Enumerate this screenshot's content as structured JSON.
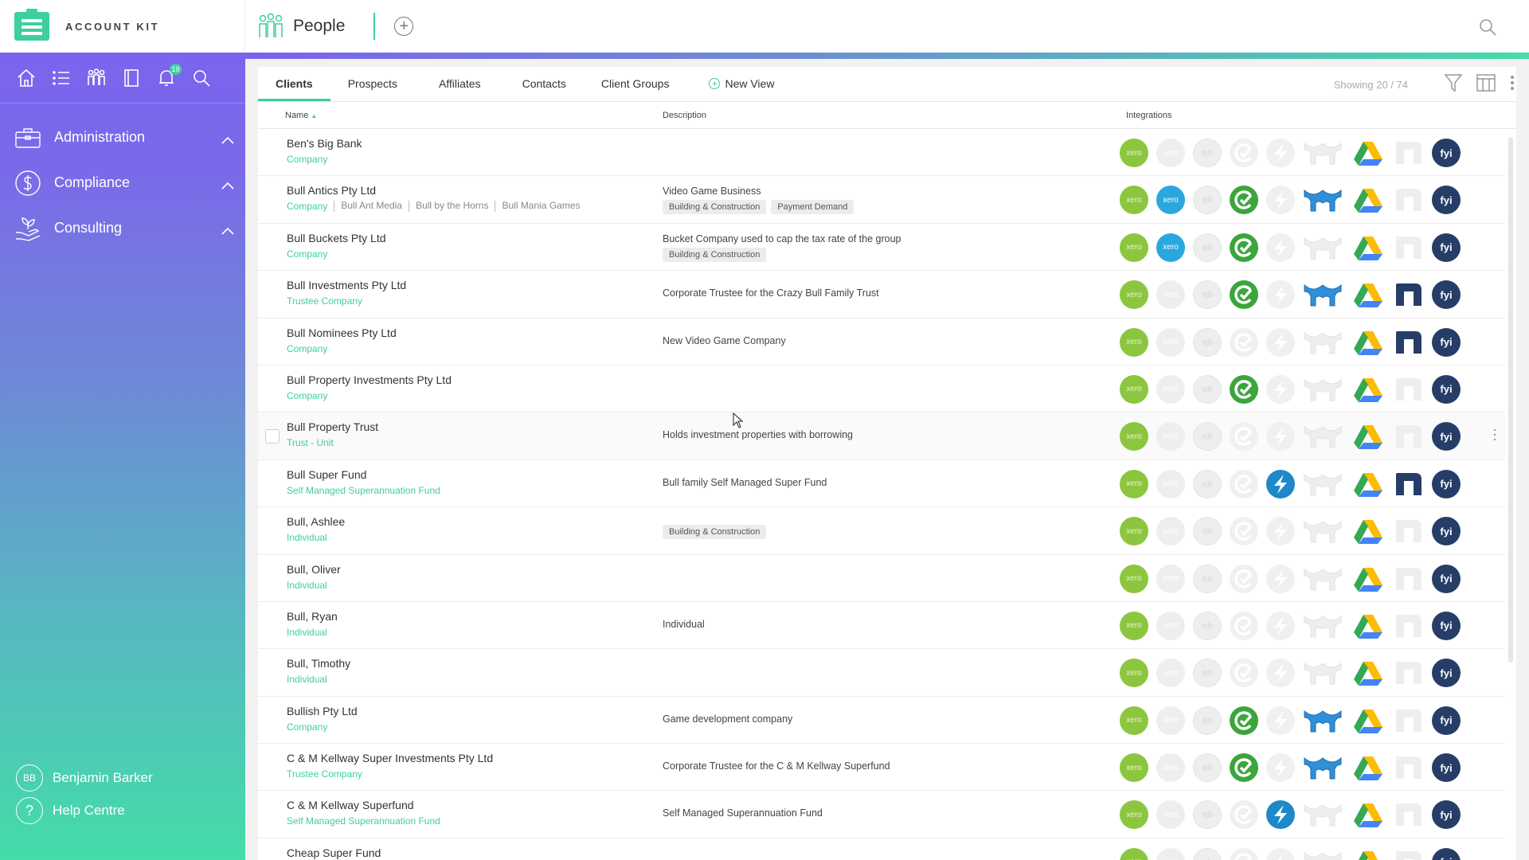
{
  "brand": {
    "name": "ACCOUNT KIT"
  },
  "header": {
    "title": "People",
    "notification_count": "19"
  },
  "sidebar": {
    "sections": [
      {
        "id": "administration",
        "label": "Administration",
        "icon": "briefcase-icon"
      },
      {
        "id": "compliance",
        "label": "Compliance",
        "icon": "dollar-circle-icon"
      },
      {
        "id": "consulting",
        "label": "Consulting",
        "icon": "plant-hand-icon"
      }
    ],
    "user": {
      "initials": "BB",
      "name": "Benjamin Barker"
    },
    "help": {
      "label": "Help Centre",
      "icon": "question-icon"
    }
  },
  "tabs": [
    {
      "label": "Clients",
      "active": true
    },
    {
      "label": "Prospects"
    },
    {
      "label": "Affiliates"
    },
    {
      "label": "Contacts"
    },
    {
      "label": "Client Groups"
    },
    {
      "label": "New View"
    }
  ],
  "showing": "Showing 20 / 74",
  "columns": {
    "name": "Name",
    "description": "Description",
    "integrations": "Integrations"
  },
  "integration_labels": {
    "xero": "xero",
    "qb": "qb",
    "fyi": "fyi"
  },
  "colors": {
    "accent": "#3fcea0",
    "xero_green": "#8cc63f",
    "xero_blue": "#2ba7df",
    "fyi_navy": "#263d67"
  },
  "rows": [
    {
      "name": "Ben's Big Bank",
      "type": "Company",
      "aliases": [],
      "description": "",
      "tags": [],
      "int": {
        "xero2": false,
        "cx": false,
        "sp": false,
        "hub": false,
        "nx": false
      }
    },
    {
      "name": "Bull Antics Pty Ltd",
      "type": "Company",
      "aliases": [
        "Bull Ant Media",
        "Bull by the Horns",
        "Bull Mania Games"
      ],
      "description": "Video Game Business",
      "tags": [
        "Building & Construction",
        "Payment Demand"
      ],
      "int": {
        "xero2": true,
        "cx": true,
        "sp": false,
        "hub": true,
        "nx": false
      }
    },
    {
      "name": "Bull Buckets Pty Ltd",
      "type": "Company",
      "aliases": [],
      "description": "Bucket Company used to cap the tax rate of the group",
      "tags": [
        "Building & Construction"
      ],
      "int": {
        "xero2": true,
        "cx": true,
        "sp": false,
        "hub": false,
        "nx": false
      }
    },
    {
      "name": "Bull Investments Pty Ltd",
      "type": "Trustee Company",
      "aliases": [],
      "description": "Corporate Trustee for the Crazy Bull Family Trust",
      "tags": [],
      "int": {
        "xero2": false,
        "cx": true,
        "sp": false,
        "hub": true,
        "nx": true
      }
    },
    {
      "name": "Bull Nominees Pty Ltd",
      "type": "Company",
      "aliases": [],
      "description": "New Video Game Company",
      "tags": [],
      "int": {
        "xero2": false,
        "cx": false,
        "sp": false,
        "hub": false,
        "nx": true
      }
    },
    {
      "name": "Bull Property Investments Pty Ltd",
      "type": "Company",
      "aliases": [],
      "description": "",
      "tags": [],
      "int": {
        "xero2": false,
        "cx": true,
        "sp": false,
        "hub": false,
        "nx": false
      }
    },
    {
      "name": "Bull Property Trust",
      "type": "Trust - Unit",
      "aliases": [],
      "description": "Holds investment properties with borrowing",
      "tags": [],
      "hover": true,
      "int": {
        "xero2": false,
        "cx": false,
        "sp": false,
        "hub": false,
        "nx": false
      }
    },
    {
      "name": "Bull Super Fund",
      "type": "Self Managed Superannuation Fund",
      "aliases": [],
      "description": "Bull family Self Managed Super Fund",
      "tags": [],
      "int": {
        "xero2": false,
        "cx": false,
        "sp": true,
        "hub": false,
        "nx": true
      }
    },
    {
      "name": "Bull, Ashlee",
      "type": "Individual",
      "aliases": [],
      "description": "",
      "tags": [
        "Building & Construction"
      ],
      "int": {
        "xero2": false,
        "cx": false,
        "sp": false,
        "hub": false,
        "nx": false
      }
    },
    {
      "name": "Bull, Oliver",
      "type": "Individual",
      "aliases": [],
      "description": "",
      "tags": [],
      "int": {
        "xero2": false,
        "cx": false,
        "sp": false,
        "hub": false,
        "nx": false
      }
    },
    {
      "name": "Bull, Ryan",
      "type": "Individual",
      "aliases": [],
      "description": "Individual",
      "tags": [],
      "int": {
        "xero2": false,
        "cx": false,
        "sp": false,
        "hub": false,
        "nx": false
      }
    },
    {
      "name": "Bull, Timothy",
      "type": "Individual",
      "aliases": [],
      "description": "",
      "tags": [],
      "int": {
        "xero2": false,
        "cx": false,
        "sp": false,
        "hub": false,
        "nx": false
      }
    },
    {
      "name": "Bullish Pty Ltd",
      "type": "Company",
      "aliases": [],
      "description": "Game development company",
      "tags": [],
      "int": {
        "xero2": false,
        "cx": true,
        "sp": false,
        "hub": true,
        "nx": false
      }
    },
    {
      "name": "C & M Kellway Super Investments Pty Ltd",
      "type": "Trustee Company",
      "aliases": [],
      "description": "Corporate Trustee for the C & M Kellway Superfund",
      "tags": [],
      "int": {
        "xero2": false,
        "cx": true,
        "sp": false,
        "hub": true,
        "nx": false
      }
    },
    {
      "name": "C & M Kellway Superfund",
      "type": "Self Managed Superannuation Fund",
      "aliases": [],
      "description": "Self Managed Superannuation Fund",
      "tags": [],
      "int": {
        "xero2": false,
        "cx": false,
        "sp": true,
        "hub": false,
        "nx": false
      }
    },
    {
      "name": "Cheap Super Fund",
      "type": "",
      "aliases": [],
      "description": "",
      "tags": [],
      "int": {
        "xero2": false,
        "cx": false,
        "sp": false,
        "hub": false,
        "nx": false
      }
    }
  ]
}
